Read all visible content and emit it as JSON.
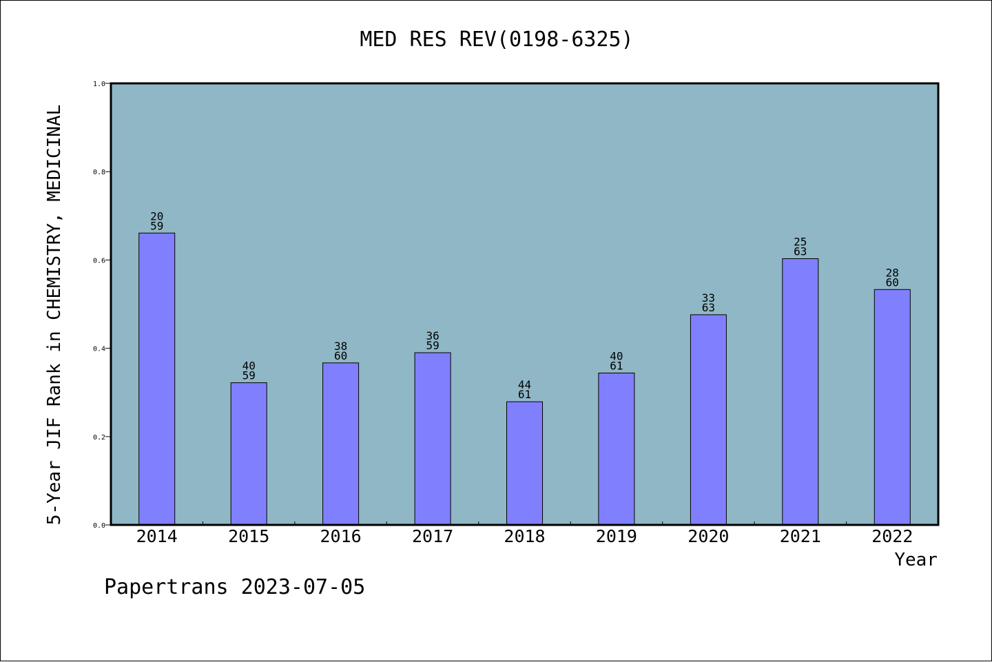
{
  "chart_data": {
    "type": "bar",
    "title": "MED RES REV(0198-6325)",
    "xlabel": "Year",
    "ylabel": "5-Year JIF Rank in CHEMISTRY, MEDICINAL",
    "ylim": [
      0,
      1.0
    ],
    "yticks": [
      "0.0",
      "0.2",
      "0.4",
      "0.6",
      "0.8",
      "1.0"
    ],
    "categories": [
      "2014",
      "2015",
      "2016",
      "2017",
      "2018",
      "2019",
      "2020",
      "2021",
      "2022"
    ],
    "values": [
      0.661,
      0.322,
      0.367,
      0.39,
      0.279,
      0.344,
      0.476,
      0.603,
      0.533
    ],
    "labels_top": [
      "20",
      "40",
      "38",
      "36",
      "44",
      "40",
      "33",
      "25",
      "28"
    ],
    "labels_bottom": [
      "59",
      "59",
      "60",
      "59",
      "61",
      "61",
      "63",
      "63",
      "60"
    ],
    "grid": false,
    "plot_background": "#8fb7c6",
    "bar_color": "#8080ff"
  },
  "footer": "Papertrans 2023-07-05"
}
